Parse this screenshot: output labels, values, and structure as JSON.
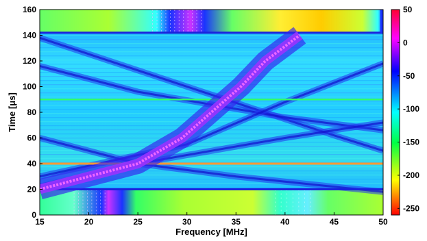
{
  "chart_data": {
    "type": "heatmap",
    "title": "",
    "xlabel": "Frequency [MHz]",
    "ylabel": "Time [μs]",
    "xlim": [
      15,
      50
    ],
    "ylim": [
      0,
      160
    ],
    "xticks": [
      15,
      20,
      25,
      30,
      35,
      40,
      45,
      50
    ],
    "yticks": [
      0,
      20,
      40,
      60,
      80,
      100,
      120,
      140,
      160
    ],
    "colorbar": {
      "range": [
        -260,
        50
      ],
      "ticks": [
        50,
        0,
        -50,
        -100,
        -150,
        -200,
        -250
      ],
      "colormap": [
        "#ff0000",
        "#ffff00",
        "#00ff44",
        "#00ffff",
        "#0000ff",
        "#ff00ff",
        "#ff0033"
      ]
    },
    "bands": [
      {
        "t": [
          0,
          20
        ],
        "description": "lower",
        "hot_region_mhz": [
          18.5,
          22
        ],
        "secondary_mhz": [
          39,
          43
        ]
      },
      {
        "t": [
          20,
          142
        ],
        "description": "middle"
      },
      {
        "t": [
          142,
          160
        ],
        "description": "upper",
        "hot_region_mhz": [
          26.5,
          31.5
        ],
        "warm_region_mhz": [
          38,
          47
        ]
      }
    ],
    "main_streak": {
      "points": [
        [
          20,
          15
        ],
        [
          40,
          25
        ],
        [
          60,
          29.5
        ],
        [
          80,
          32.5
        ],
        [
          100,
          35.5
        ],
        [
          120,
          38
        ],
        [
          140,
          41.5
        ]
      ]
    },
    "secondary_lines": [
      {
        "points": [
          [
            15,
            138
          ],
          [
            30,
            100
          ],
          [
            45,
            62
          ],
          [
            50,
            50
          ]
        ]
      },
      {
        "points": [
          [
            15,
            116
          ],
          [
            25,
            96
          ],
          [
            40,
            76
          ],
          [
            50,
            66
          ]
        ]
      },
      {
        "points": [
          [
            15,
            60
          ],
          [
            25,
            40
          ],
          [
            35,
            30
          ],
          [
            50,
            18
          ]
        ]
      },
      {
        "points": [
          [
            15,
            30
          ],
          [
            30,
            55
          ],
          [
            40,
            88
          ],
          [
            50,
            118
          ]
        ]
      },
      {
        "points": [
          [
            15,
            22
          ],
          [
            25,
            40
          ],
          [
            40,
            60
          ],
          [
            50,
            72
          ]
        ]
      }
    ],
    "horizontal_lines_t": [
      20,
      40,
      90,
      142
    ],
    "grid": false
  }
}
